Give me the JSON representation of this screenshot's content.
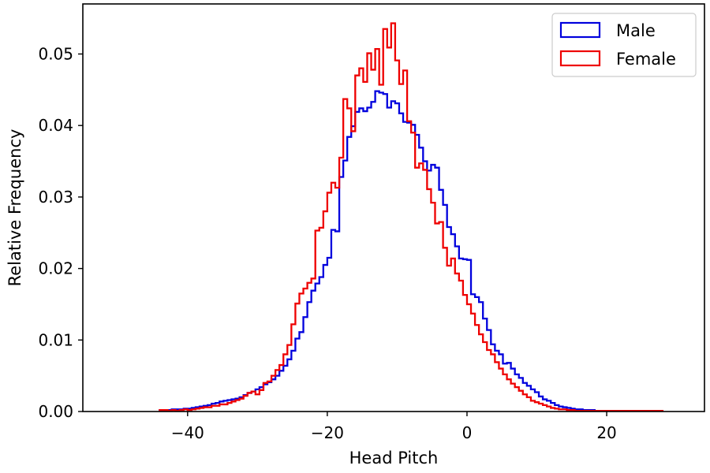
{
  "chart_data": {
    "type": "histogram-step",
    "title": "",
    "xlabel": "Head Pitch",
    "ylabel": "Relative Frequency",
    "xlim": [
      -55,
      34
    ],
    "ylim": [
      0,
      0.057
    ],
    "xticks": [
      -40,
      -20,
      0,
      20
    ],
    "xtick_labels": [
      "−40",
      "−20",
      "0",
      "20"
    ],
    "yticks": [
      0,
      0.01,
      0.02,
      0.03,
      0.04,
      0.05
    ],
    "ytick_labels": [
      "0.00",
      "0.01",
      "0.02",
      "0.03",
      "0.04",
      "0.05"
    ],
    "legend_position": "top-right",
    "series": [
      {
        "name": "Male",
        "color": "#0000dd",
        "x_start": -44,
        "x_end": 28,
        "values": [
          0.0002,
          0.0002,
          0.0002,
          0.0003,
          0.0003,
          0.0003,
          0.0004,
          0.0004,
          0.0005,
          0.0006,
          0.0007,
          0.0008,
          0.0009,
          0.0011,
          0.0012,
          0.0014,
          0.0015,
          0.0016,
          0.0017,
          0.0018,
          0.002,
          0.0023,
          0.0026,
          0.0028,
          0.0031,
          0.0034,
          0.0038,
          0.0041,
          0.0045,
          0.005,
          0.0057,
          0.0064,
          0.0073,
          0.0085,
          0.0102,
          0.0111,
          0.0132,
          0.0153,
          0.0169,
          0.0179,
          0.0188,
          0.0205,
          0.0215,
          0.0254,
          0.0252,
          0.0328,
          0.0351,
          0.0384,
          0.0399,
          0.0419,
          0.0424,
          0.042,
          0.0425,
          0.0433,
          0.0448,
          0.0446,
          0.0444,
          0.0425,
          0.0434,
          0.0431,
          0.0417,
          0.0405,
          0.0404,
          0.0401,
          0.0387,
          0.0369,
          0.035,
          0.0337,
          0.0345,
          0.0341,
          0.031,
          0.0289,
          0.0258,
          0.0248,
          0.0231,
          0.0214,
          0.0213,
          0.0212,
          0.0164,
          0.016,
          0.0153,
          0.013,
          0.0114,
          0.0094,
          0.0085,
          0.008,
          0.0067,
          0.0068,
          0.006,
          0.0052,
          0.0047,
          0.004,
          0.0036,
          0.0031,
          0.0027,
          0.0021,
          0.0017,
          0.0015,
          0.0012,
          0.0009,
          0.0007,
          0.0006,
          0.0005,
          0.0004,
          0.0003,
          0.0003,
          0.0002,
          0.0002,
          0.0002,
          0.0001,
          0.0001,
          0.0001,
          0.0001,
          0.0001,
          0.0001,
          0.0001,
          0.0001,
          0.0001,
          0.0001,
          0.0001,
          0.0001,
          0.0001,
          0.0001,
          0.0001,
          0.0001,
          0.0001
        ]
      },
      {
        "name": "Female",
        "color": "#ee0000",
        "x_start": -44,
        "x_end": 28,
        "values": [
          0.0002,
          0.0002,
          0.0001,
          0.0002,
          0.0001,
          0.0002,
          0.0003,
          0.0002,
          0.0003,
          0.0004,
          0.0005,
          0.0006,
          0.0006,
          0.0008,
          0.0008,
          0.001,
          0.001,
          0.0012,
          0.0014,
          0.0016,
          0.0018,
          0.0022,
          0.0026,
          0.0028,
          0.0024,
          0.003,
          0.004,
          0.0042,
          0.005,
          0.0058,
          0.0065,
          0.008,
          0.0093,
          0.0122,
          0.0151,
          0.0165,
          0.0172,
          0.018,
          0.0186,
          0.0253,
          0.0257,
          0.028,
          0.0306,
          0.032,
          0.0313,
          0.0355,
          0.0437,
          0.0424,
          0.0392,
          0.047,
          0.048,
          0.0461,
          0.0501,
          0.0478,
          0.0507,
          0.0457,
          0.0535,
          0.0509,
          0.0543,
          0.0491,
          0.0458,
          0.0477,
          0.0406,
          0.039,
          0.0341,
          0.0347,
          0.0338,
          0.0311,
          0.0292,
          0.0263,
          0.0265,
          0.0229,
          0.0204,
          0.0214,
          0.0193,
          0.0183,
          0.0163,
          0.015,
          0.0137,
          0.0121,
          0.0108,
          0.0097,
          0.0086,
          0.008,
          0.0069,
          0.006,
          0.0052,
          0.0045,
          0.0039,
          0.0034,
          0.0029,
          0.0024,
          0.002,
          0.0015,
          0.0013,
          0.0011,
          0.0009,
          0.0007,
          0.0005,
          0.0004,
          0.0003,
          0.0003,
          0.0002,
          0.0002,
          0.0001,
          0.0001,
          0.0001,
          0.0001,
          0.0001,
          0.0001,
          0.0001,
          0.0001,
          0.0001,
          0.0001,
          0.0001,
          0.0001,
          0.0001,
          0.0001,
          0.0001,
          0.0001,
          0.0001,
          0.0001,
          0.0001,
          0.0001,
          0.0001,
          0.0001
        ]
      }
    ]
  }
}
